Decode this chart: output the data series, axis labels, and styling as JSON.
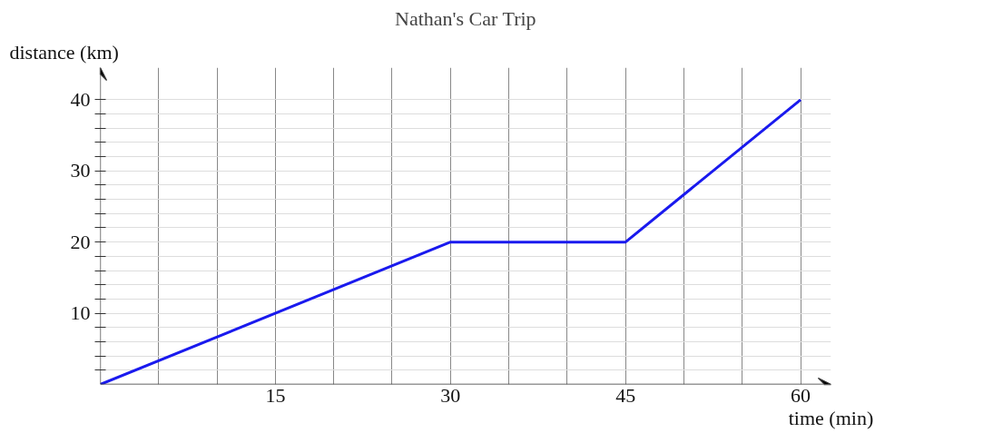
{
  "chart_data": {
    "type": "line",
    "title": "Nathan's Car Trip",
    "xlabel": "time (min)",
    "ylabel": "distance (km)",
    "x": [
      0,
      30,
      45,
      60
    ],
    "series": [
      {
        "color": "#1a1aee",
        "values": [
          0,
          20,
          20,
          40
        ]
      }
    ],
    "xlim": [
      0,
      62.6
    ],
    "ylim": [
      0,
      44.5
    ],
    "xticks": [
      {
        "value": 5,
        "label": null
      },
      {
        "value": 10,
        "label": null
      },
      15,
      {
        "value": 20,
        "label": null
      },
      {
        "value": 25,
        "label": null
      },
      30,
      {
        "value": 35,
        "label": null
      },
      {
        "value": 40,
        "label": null
      },
      45,
      {
        "value": 50,
        "label": null
      },
      {
        "value": 55,
        "label": null
      },
      60
    ],
    "yticks": [
      {
        "value": 2,
        "label": null
      },
      {
        "value": 4,
        "label": null
      },
      {
        "value": 6,
        "label": null
      },
      {
        "value": 8,
        "label": null
      },
      10,
      {
        "value": 12,
        "label": null
      },
      {
        "value": 14,
        "label": null
      },
      {
        "value": 16,
        "label": null
      },
      {
        "value": 18,
        "label": null
      },
      20,
      {
        "value": 22,
        "label": null
      },
      {
        "value": 24,
        "label": null
      },
      {
        "value": 26,
        "label": null
      },
      {
        "value": 28,
        "label": null
      },
      30,
      {
        "value": 32,
        "label": null
      },
      {
        "value": 34,
        "label": null
      },
      {
        "value": 36,
        "label": null
      },
      {
        "value": 38,
        "label": null
      },
      40
    ],
    "grid": true,
    "marker": "none",
    "line_style": "solid"
  }
}
